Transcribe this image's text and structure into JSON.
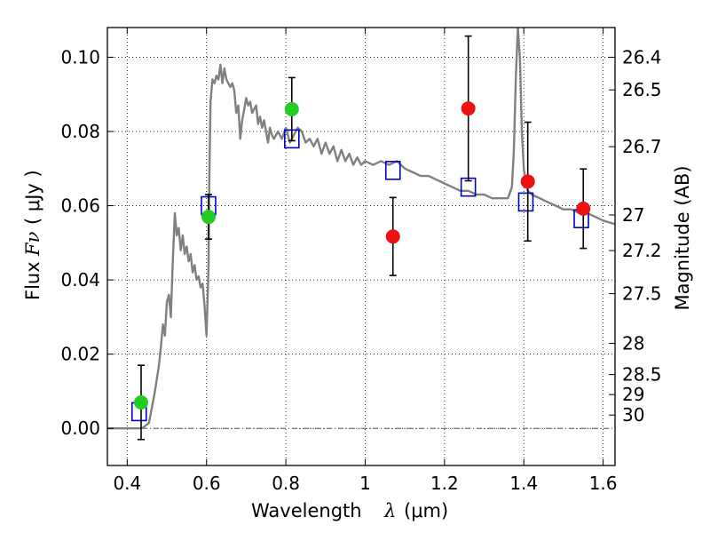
{
  "chart_data": {
    "type": "scatter",
    "xlabel_text": "Wavelength",
    "xlabel_symbol": "λ",
    "xlabel_unit": "(μm)",
    "ylabel_text": "Flux",
    "ylabel_symbol": "Fν",
    "ylabel_unit": "( μJy )",
    "y2label": "Magnitude (AB)",
    "xlim": [
      0.35,
      1.63
    ],
    "ylim": [
      -0.01,
      0.108
    ],
    "grid": true,
    "x_ticks": [
      0.4,
      0.6,
      0.8,
      1.0,
      1.2,
      1.4,
      1.6
    ],
    "x_tick_labels": [
      "0.4",
      "0.6",
      "0.8",
      "1",
      "1.2",
      "1.4",
      "1.6"
    ],
    "y_ticks": [
      0.0,
      0.02,
      0.04,
      0.06,
      0.08,
      0.1
    ],
    "y_tick_labels": [
      "0.00",
      "0.02",
      "0.04",
      "0.06",
      "0.08",
      "0.10"
    ],
    "mag_ticks": [
      {
        "label": "26.4",
        "flux": 0.1
      },
      {
        "label": "26.5",
        "flux": 0.0912
      },
      {
        "label": "26.7",
        "flux": 0.0759
      },
      {
        "label": "27",
        "flux": 0.0575
      },
      {
        "label": "27.2",
        "flux": 0.0479
      },
      {
        "label": "27.5",
        "flux": 0.0363
      },
      {
        "label": "28",
        "flux": 0.0229
      },
      {
        "label": "28.5",
        "flux": 0.0145
      },
      {
        "label": "29",
        "flux": 0.0091
      },
      {
        "label": "30",
        "flux": 0.0036
      }
    ],
    "series": [
      {
        "color": "#808080",
        "kind": "spectrum",
        "x": [
          0.35,
          0.43,
          0.44,
          0.455,
          0.47,
          0.48,
          0.485,
          0.49,
          0.495,
          0.5,
          0.505,
          0.51,
          0.515,
          0.52,
          0.525,
          0.53,
          0.535,
          0.54,
          0.545,
          0.55,
          0.555,
          0.56,
          0.565,
          0.57,
          0.575,
          0.58,
          0.585,
          0.59,
          0.595,
          0.6,
          0.605,
          0.607,
          0.61,
          0.615,
          0.62,
          0.625,
          0.63,
          0.635,
          0.64,
          0.645,
          0.65,
          0.655,
          0.66,
          0.665,
          0.67,
          0.675,
          0.68,
          0.685,
          0.69,
          0.695,
          0.7,
          0.705,
          0.71,
          0.715,
          0.72,
          0.725,
          0.73,
          0.735,
          0.74,
          0.745,
          0.75,
          0.755,
          0.76,
          0.765,
          0.77,
          0.78,
          0.79,
          0.8,
          0.81,
          0.82,
          0.83,
          0.84,
          0.85,
          0.86,
          0.87,
          0.88,
          0.89,
          0.9,
          0.91,
          0.92,
          0.93,
          0.94,
          0.95,
          0.96,
          0.97,
          0.98,
          0.99,
          1.0,
          1.02,
          1.04,
          1.06,
          1.08,
          1.1,
          1.12,
          1.14,
          1.16,
          1.18,
          1.2,
          1.22,
          1.24,
          1.26,
          1.28,
          1.3,
          1.32,
          1.34,
          1.36,
          1.37,
          1.375,
          1.38,
          1.385,
          1.39,
          1.395,
          1.4,
          1.405,
          1.41,
          1.42,
          1.44,
          1.46,
          1.48,
          1.5,
          1.52,
          1.54,
          1.56,
          1.58,
          1.6,
          1.63
        ],
        "y": [
          0.0,
          0.0,
          0.0002,
          0.0015,
          0.01,
          0.017,
          0.022,
          0.028,
          0.025,
          0.034,
          0.036,
          0.03,
          0.045,
          0.058,
          0.052,
          0.054,
          0.048,
          0.052,
          0.047,
          0.049,
          0.045,
          0.047,
          0.042,
          0.044,
          0.04,
          0.041,
          0.038,
          0.039,
          0.033,
          0.025,
          0.044,
          0.066,
          0.088,
          0.094,
          0.093,
          0.095,
          0.094,
          0.098,
          0.093,
          0.097,
          0.094,
          0.093,
          0.092,
          0.093,
          0.091,
          0.085,
          0.087,
          0.078,
          0.083,
          0.086,
          0.089,
          0.087,
          0.088,
          0.085,
          0.086,
          0.087,
          0.082,
          0.084,
          0.081,
          0.083,
          0.08,
          0.077,
          0.081,
          0.079,
          0.078,
          0.08,
          0.078,
          0.081,
          0.077,
          0.079,
          0.081,
          0.08,
          0.077,
          0.078,
          0.076,
          0.078,
          0.074,
          0.077,
          0.074,
          0.076,
          0.072,
          0.075,
          0.072,
          0.074,
          0.071,
          0.073,
          0.071,
          0.072,
          0.071,
          0.072,
          0.071,
          0.072,
          0.07,
          0.069,
          0.068,
          0.068,
          0.067,
          0.066,
          0.065,
          0.064,
          0.064,
          0.063,
          0.063,
          0.062,
          0.062,
          0.062,
          0.065,
          0.075,
          0.095,
          0.108,
          0.1,
          0.08,
          0.07,
          0.066,
          0.064,
          0.063,
          0.062,
          0.061,
          0.06,
          0.059,
          0.059,
          0.058,
          0.058,
          0.057,
          0.056,
          0.055
        ]
      },
      {
        "color": "#0000cc",
        "kind": "square",
        "x": [
          0.43,
          0.605,
          0.815,
          1.07,
          1.26,
          1.405,
          1.545
        ],
        "y": [
          0.0045,
          0.06,
          0.078,
          0.0695,
          0.065,
          0.061,
          0.0565
        ]
      },
      {
        "color": "#22cc22",
        "kind": "point",
        "x": [
          0.435,
          0.605,
          0.815
        ],
        "y": [
          0.007,
          0.057,
          0.086
        ],
        "yerr": [
          0.01,
          0.006,
          0.0085
        ]
      },
      {
        "color": "#ee1111",
        "kind": "point",
        "x": [
          1.07,
          1.26,
          1.41,
          1.55
        ],
        "y": [
          0.0517,
          0.0862,
          0.0665,
          0.0592
        ],
        "yerr": [
          0.0105,
          0.0195,
          0.016,
          0.0107
        ]
      }
    ]
  }
}
